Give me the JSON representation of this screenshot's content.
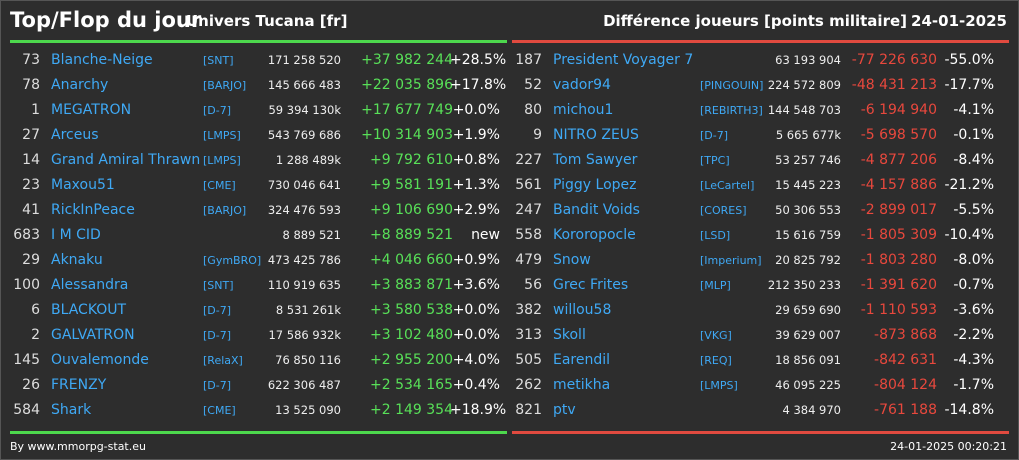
{
  "header": {
    "title": "Top/Flop du jour",
    "universe": "Univers Tucana [fr]",
    "subtitle": "Différence joueurs [points militaire]",
    "date": "24-01-2025"
  },
  "colors": {
    "background": "#2d2d2d",
    "top_accent": "#4dd84d",
    "flop_accent": "#e04a3f",
    "name_color": "#3fa9f5"
  },
  "top": [
    {
      "rank": "73",
      "name": "Blanche-Neige",
      "alliance": "[SNT]",
      "points": "171 258 520",
      "diff": "+37 982 244",
      "pct": "+28.5%"
    },
    {
      "rank": "78",
      "name": "Anarchy",
      "alliance": "[BARJO]",
      "points": "145 666 483",
      "diff": "+22 035 896",
      "pct": "+17.8%"
    },
    {
      "rank": "1",
      "name": "MEGATRON",
      "alliance": "[D-7]",
      "points": "59 394 130k",
      "diff": "+17 677 749",
      "pct": "+0.0%"
    },
    {
      "rank": "27",
      "name": "Arceus",
      "alliance": "[LMPS]",
      "points": "543 769 686",
      "diff": "+10 314 903",
      "pct": "+1.9%"
    },
    {
      "rank": "14",
      "name": "Grand Amiral Thrawn",
      "alliance": "[LMPS]",
      "points": "1 288 489k",
      "diff": "+9 792 610",
      "pct": "+0.8%"
    },
    {
      "rank": "23",
      "name": "Maxou51",
      "alliance": "[CME]",
      "points": "730 046 641",
      "diff": "+9 581 191",
      "pct": "+1.3%"
    },
    {
      "rank": "41",
      "name": "RickInPeace",
      "alliance": "[BARJO]",
      "points": "324 476 593",
      "diff": "+9 106 690",
      "pct": "+2.9%"
    },
    {
      "rank": "683",
      "name": "I M CID",
      "alliance": "",
      "points": "8 889 521",
      "diff": "+8 889 521",
      "pct": "new"
    },
    {
      "rank": "29",
      "name": "Aknaku",
      "alliance": "[GymBRO]",
      "points": "473 425 786",
      "diff": "+4 046 660",
      "pct": "+0.9%"
    },
    {
      "rank": "100",
      "name": "Alessandra",
      "alliance": "[SNT]",
      "points": "110 919 635",
      "diff": "+3 883 871",
      "pct": "+3.6%"
    },
    {
      "rank": "6",
      "name": "BLACKOUT",
      "alliance": "[D-7]",
      "points": "8 531 261k",
      "diff": "+3 580 538",
      "pct": "+0.0%"
    },
    {
      "rank": "2",
      "name": "GALVATRON",
      "alliance": "[D-7]",
      "points": "17 586 932k",
      "diff": "+3 102 480",
      "pct": "+0.0%"
    },
    {
      "rank": "145",
      "name": "Ouvalemonde",
      "alliance": "[RelaX]",
      "points": "76 850 116",
      "diff": "+2 955 200",
      "pct": "+4.0%"
    },
    {
      "rank": "26",
      "name": "FRENZY",
      "alliance": "[D-7]",
      "points": "622 306 487",
      "diff": "+2 534 165",
      "pct": "+0.4%"
    },
    {
      "rank": "584",
      "name": "Shark",
      "alliance": "[CME]",
      "points": "13 525 090",
      "diff": "+2 149 354",
      "pct": "+18.9%"
    }
  ],
  "flop": [
    {
      "rank": "187",
      "name": "President Voyager 7",
      "alliance": "",
      "points": "63 193 904",
      "diff": "-77 226 630",
      "pct": "-55.0%"
    },
    {
      "rank": "52",
      "name": "vador94",
      "alliance": "[PINGOUIN]",
      "points": "224 572 809",
      "diff": "-48 431 213",
      "pct": "-17.7%"
    },
    {
      "rank": "80",
      "name": "michou1",
      "alliance": "[REBIRTH3]",
      "points": "144 548 703",
      "diff": "-6 194 940",
      "pct": "-4.1%"
    },
    {
      "rank": "9",
      "name": "NITRO ZEUS",
      "alliance": "[D-7]",
      "points": "5 665 677k",
      "diff": "-5 698 570",
      "pct": "-0.1%"
    },
    {
      "rank": "227",
      "name": "Tom Sawyer",
      "alliance": "[TPC]",
      "points": "53 257 746",
      "diff": "-4 877 206",
      "pct": "-8.4%"
    },
    {
      "rank": "561",
      "name": "Piggy Lopez",
      "alliance": "[LeCartel]",
      "points": "15 445 223",
      "diff": "-4 157 886",
      "pct": "-21.2%"
    },
    {
      "rank": "247",
      "name": "Bandit Voids",
      "alliance": "[CORES]",
      "points": "50 306 553",
      "diff": "-2 899 017",
      "pct": "-5.5%"
    },
    {
      "rank": "558",
      "name": "Kororopocle",
      "alliance": "[LSD]",
      "points": "15 616 759",
      "diff": "-1 805 309",
      "pct": "-10.4%"
    },
    {
      "rank": "479",
      "name": "Snow",
      "alliance": "[Imperium]",
      "points": "20 825 792",
      "diff": "-1 803 280",
      "pct": "-8.0%"
    },
    {
      "rank": "56",
      "name": "Grec Frites",
      "alliance": "[MLP]",
      "points": "212 350 233",
      "diff": "-1 391 620",
      "pct": "-0.7%"
    },
    {
      "rank": "382",
      "name": "willou58",
      "alliance": "",
      "points": "29 659 690",
      "diff": "-1 110 593",
      "pct": "-3.6%"
    },
    {
      "rank": "313",
      "name": "Skoll",
      "alliance": "[VKG]",
      "points": "39 629 007",
      "diff": "-873 868",
      "pct": "-2.2%"
    },
    {
      "rank": "505",
      "name": "Earendil",
      "alliance": "[REQ]",
      "points": "18 856 091",
      "diff": "-842 631",
      "pct": "-4.3%"
    },
    {
      "rank": "262",
      "name": "metikha",
      "alliance": "[LMPS]",
      "points": "46 095 225",
      "diff": "-804 124",
      "pct": "-1.7%"
    },
    {
      "rank": "821",
      "name": "ptv",
      "alliance": "",
      "points": "4 384 970",
      "diff": "-761 188",
      "pct": "-14.8%"
    }
  ],
  "footer": {
    "credit": "By www.mmorpg-stat.eu",
    "timestamp": "24-01-2025 00:20:21"
  }
}
